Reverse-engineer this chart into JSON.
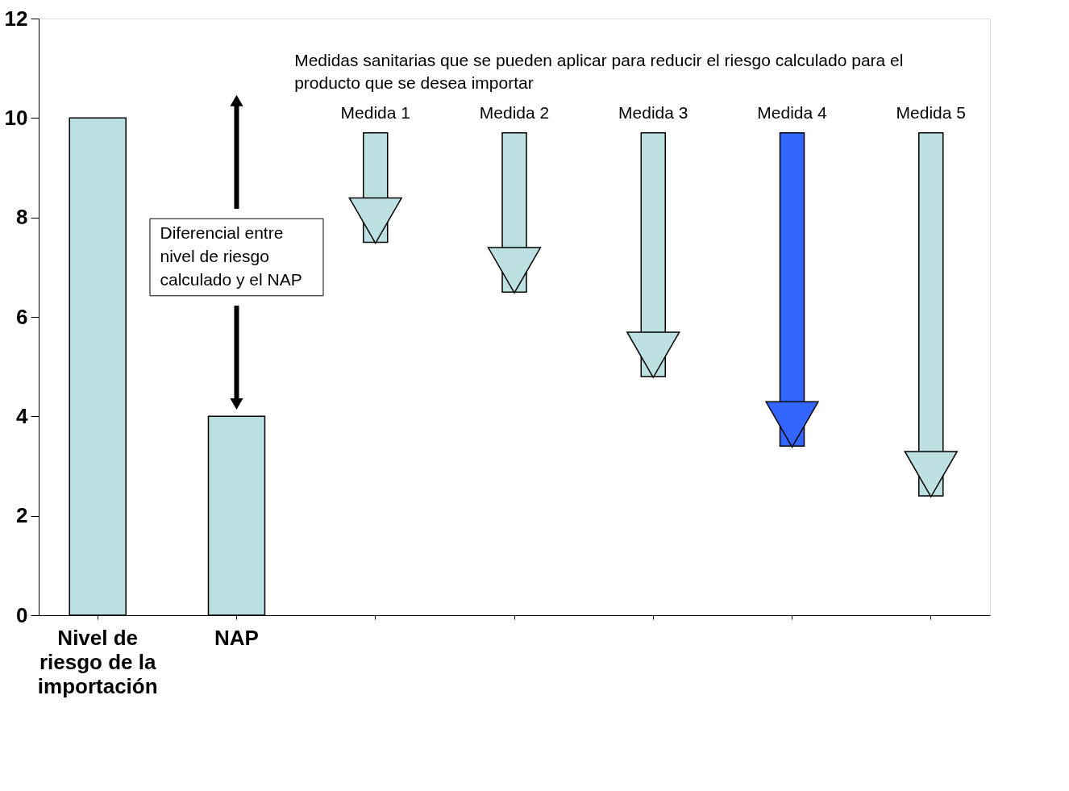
{
  "chart_data": {
    "type": "bar",
    "categories": [
      "Nivel de riesgo de la importación",
      "NAP",
      null,
      null,
      null,
      null,
      null
    ],
    "series": [
      {
        "color": "#b9dfe3",
        "values": [
          10,
          4,
          null,
          null,
          null,
          null,
          null
        ]
      },
      {
        "type": "bar",
        "colors": [
          "#bde0e3",
          "#bde0e3",
          "#bde0e3",
          "#bde0e3",
          "#bde0e3",
          "#3366ff",
          "#bde0e3"
        ],
        "base": [
          null,
          null,
          7.5,
          6.5,
          4.8,
          3.4,
          2.4
        ],
        "values": [
          null,
          null,
          2.2,
          3.2,
          4.9,
          6.3,
          7.3
        ]
      }
    ],
    "ylim": [
      0,
      12
    ],
    "yticks": [
      0,
      2,
      4,
      6,
      8,
      10,
      12
    ],
    "annotations": [
      "Medidas sanitarias que se pueden aplicar para reducir el riesgo calculado para el producto que se desea importar",
      "Diferencial entre nivel de riesgo calculado y el NAP",
      "Medida 1",
      "Medida 2",
      "Medida 3",
      "Medida 4",
      "Medida 5"
    ]
  }
}
